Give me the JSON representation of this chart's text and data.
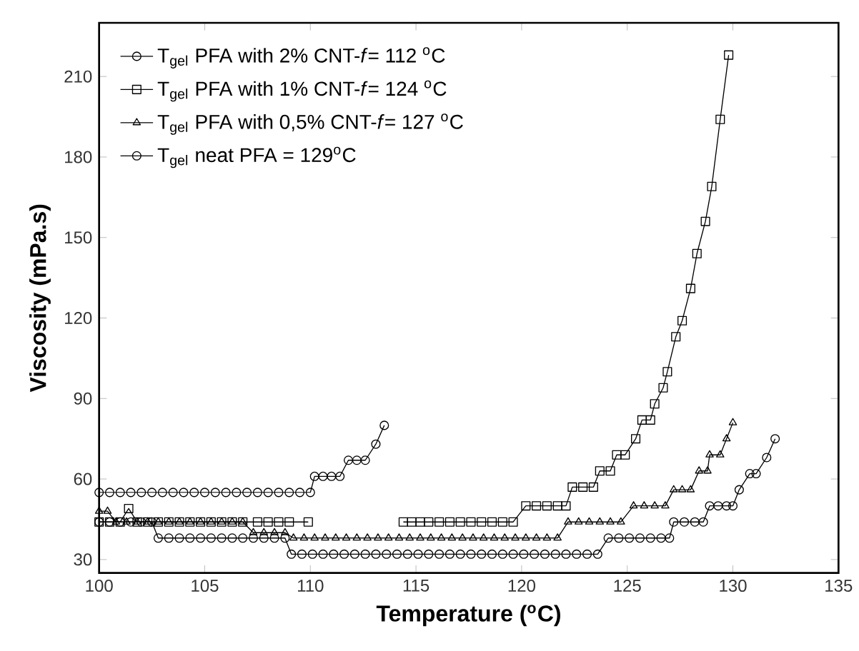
{
  "chart_data": {
    "type": "line",
    "xlabel": "Temperature ($^{o}$C)",
    "ylabel": "Viscosity (mPa.s)",
    "xlim": [
      100,
      135
    ],
    "xticks": [
      100,
      105,
      110,
      115,
      120,
      125,
      130,
      135
    ],
    "ylim": [
      25,
      230
    ],
    "yticks": [
      30,
      60,
      90,
      120,
      150,
      180,
      210
    ],
    "grid": false,
    "legend": "top left",
    "series": [
      {
        "name": "T$_{gel}$ PFA with 2% CNT-*f*= 112 $^{o}$C",
        "color": "#000000",
        "marker": "circle",
        "x": [
          100,
          100.5,
          101,
          101.5,
          102,
          102.5,
          103,
          103.5,
          104,
          104.5,
          105,
          105.5,
          106,
          106.5,
          107,
          107.5,
          108,
          108.5,
          109,
          109.5,
          110,
          110.2,
          110.6,
          111,
          111.4,
          111.8,
          112.2,
          112.6,
          113.1,
          113.5
        ],
        "values": [
          55,
          55,
          55,
          55,
          55,
          55,
          55,
          55,
          55,
          55,
          55,
          55,
          55,
          55,
          55,
          55,
          55,
          55,
          55,
          55,
          55,
          61,
          61,
          61,
          61,
          67,
          67,
          67,
          73,
          80
        ]
      },
      {
        "name": "T$_{gel}$ PFA with 1% CNT-*f*= 124 $^{o}$C",
        "color": "#000000",
        "marker": "square",
        "x": [
          100,
          100.5,
          101,
          101.4,
          101.8,
          102.3,
          102.8,
          103.3,
          103.8,
          104.3,
          104.8,
          105.3,
          105.8,
          106.3,
          106.8,
          107.5,
          108,
          108.5,
          109,
          109.9,
          112,
          114.4,
          114.8,
          115.2,
          115.6,
          116.1,
          116.6,
          117.1,
          117.6,
          118.1,
          118.6,
          119.1,
          119.6,
          120.2,
          120.7,
          121.2,
          121.7,
          122.1,
          122.4,
          122.9,
          123.4,
          123.7,
          124.2,
          124.5,
          124.9,
          125.4,
          125.7,
          126.1,
          126.3,
          126.7,
          126.9,
          127.3,
          127.6,
          128,
          128.3,
          128.7,
          129,
          129.4,
          129.8
        ],
        "values": [
          44,
          44,
          44,
          49,
          44,
          44,
          44,
          44,
          44,
          44,
          44,
          44,
          44,
          44,
          44,
          44,
          44,
          44,
          44,
          44,
          null,
          44,
          44,
          44,
          44,
          44,
          44,
          44,
          44,
          44,
          44,
          44,
          44,
          50,
          50,
          50,
          50,
          50,
          57,
          57,
          57,
          63,
          63,
          69,
          69,
          75,
          82,
          82,
          88,
          94,
          100,
          113,
          119,
          131,
          144,
          156,
          169,
          194,
          218
        ]
      },
      {
        "name": "T$_{gel}$ PFA with 0,5% CNT-*f*= 127 $^{o}$C",
        "color": "#000000",
        "marker": "triangle",
        "x": [
          100,
          100.4,
          100.8,
          101.3,
          101.8,
          102.3,
          102.8,
          103.3,
          103.8,
          104.3,
          104.8,
          105.3,
          105.8,
          106.3,
          106.8,
          107.3,
          107.8,
          108.3,
          108.8,
          109.2,
          109.7,
          110.2,
          110.7,
          111.2,
          111.7,
          112.2,
          112.7,
          113.2,
          113.7,
          114.2,
          114.7,
          115.2,
          115.7,
          116.2,
          116.7,
          117.2,
          117.7,
          118.2,
          118.7,
          119.2,
          119.7,
          120.2,
          120.7,
          121.2,
          121.7,
          122.2,
          122.7,
          123.2,
          123.7,
          124.2,
          124.7,
          125.3,
          125.8,
          126.3,
          126.8,
          127.2,
          127.6,
          128,
          128.4,
          128.8,
          128.9,
          129.4,
          129.7,
          130
        ],
        "values": [
          48,
          48,
          44,
          44,
          44,
          44,
          44,
          44,
          44,
          44,
          44,
          44,
          44,
          44,
          44,
          40,
          40,
          40,
          40,
          38,
          38,
          38,
          38,
          38,
          38,
          38,
          38,
          38,
          38,
          38,
          38,
          38,
          38,
          38,
          38,
          38,
          38,
          38,
          38,
          38,
          38,
          38,
          38,
          38,
          38,
          44,
          44,
          44,
          44,
          44,
          44,
          50,
          50,
          50,
          50,
          56,
          56,
          56,
          63,
          63,
          69,
          69,
          75,
          81
        ]
      },
      {
        "name": "T$_{gel}$ neat PFA = 129$^{o}$C",
        "color": "#000000",
        "marker": "circle",
        "x": [
          100,
          100.5,
          101,
          101.5,
          102,
          102.5,
          102.8,
          103.3,
          103.8,
          104.3,
          104.8,
          105.3,
          105.8,
          106.3,
          106.8,
          107.3,
          107.8,
          108.3,
          108.8,
          109.1,
          109.6,
          110.1,
          110.6,
          111.1,
          111.6,
          112.1,
          112.6,
          113.1,
          113.6,
          114.1,
          114.6,
          115.1,
          115.6,
          116.1,
          116.6,
          117.1,
          117.6,
          118.1,
          118.6,
          119.1,
          119.6,
          120.1,
          120.6,
          121.1,
          121.6,
          122.1,
          122.6,
          123.1,
          123.6,
          124.1,
          124.6,
          125.1,
          125.6,
          126.1,
          126.6,
          127,
          127.2,
          127.7,
          128.2,
          128.6,
          128.9,
          129.3,
          129.7,
          130,
          130.3,
          130.8,
          131.1,
          131.6,
          132
        ],
        "values": [
          44,
          44,
          44,
          44,
          44,
          44,
          38,
          38,
          38,
          38,
          38,
          38,
          38,
          38,
          38,
          38,
          38,
          38,
          38,
          32,
          32,
          32,
          32,
          32,
          32,
          32,
          32,
          32,
          32,
          32,
          32,
          32,
          32,
          32,
          32,
          32,
          32,
          32,
          32,
          32,
          32,
          32,
          32,
          32,
          32,
          32,
          32,
          32,
          32,
          38,
          38,
          38,
          38,
          38,
          38,
          38,
          44,
          44,
          44,
          44,
          50,
          50,
          50,
          50,
          56,
          62,
          62,
          68,
          75
        ]
      }
    ]
  }
}
